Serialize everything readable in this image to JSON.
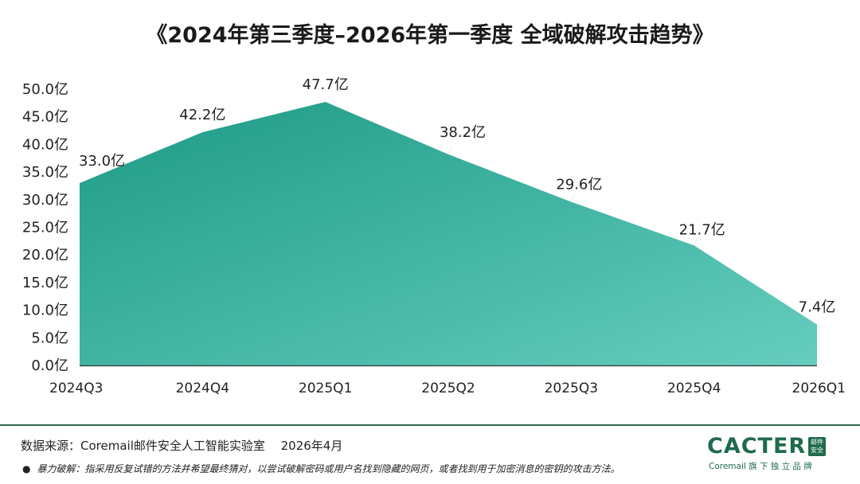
{
  "colors": {
    "area_dark": "#1d9a85",
    "area_light": "#66cdbf",
    "axis": "#333333",
    "brand": "#1f6b4c"
  },
  "chart_data": {
    "type": "area",
    "title": "《2024年第三季度–2026年第一季度 全域破解攻击趋势》",
    "categories": [
      "2024Q3",
      "2024Q4",
      "2025Q1",
      "2025Q2",
      "2025Q3",
      "2025Q4",
      "2026Q1"
    ],
    "values": [
      33.0,
      42.2,
      47.7,
      38.2,
      29.6,
      21.7,
      7.4
    ],
    "data_labels": [
      "33.0亿",
      "42.2亿",
      "47.7亿",
      "38.2亿",
      "29.6亿",
      "21.7亿",
      "7.4亿"
    ],
    "y_ticks": [
      "0.0亿",
      "5.0亿",
      "10.0亿",
      "15.0亿",
      "20.0亿",
      "25.0亿",
      "30.0亿",
      "35.0亿",
      "40.0亿",
      "45.0亿",
      "50.0亿"
    ],
    "ylim": [
      0,
      50
    ],
    "xlabel": "",
    "ylabel": "",
    "grid": false,
    "legend": "none"
  },
  "footer": {
    "source": "数据来源：Coremail邮件安全人工智能实验室　 2026年4月",
    "bullet": "●",
    "footnote": "暴力破解：指采用反复试错的方法并希望最终猜对，以尝试破解密码或用户名找到隐藏的网页，或者找到用于加密消息的密钥的攻击方法。"
  },
  "brand": {
    "name": "CACTER",
    "badge": "邮件 安全",
    "tagline": "Coremail 旗 下 独 立 品 牌"
  }
}
